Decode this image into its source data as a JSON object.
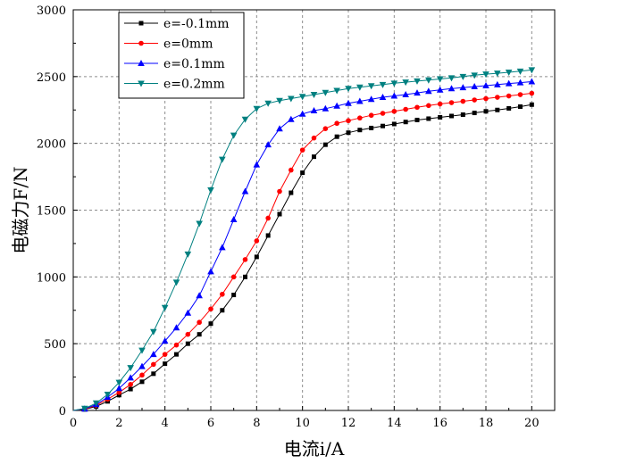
{
  "chart_data": {
    "type": "line",
    "title": "",
    "xlabel": "电流i/A",
    "ylabel": "电磁力F/N",
    "xlim": [
      0,
      21
    ],
    "ylim": [
      0,
      3000
    ],
    "xticks": [
      0,
      2,
      4,
      6,
      8,
      10,
      12,
      14,
      16,
      18,
      20
    ],
    "yticks": [
      0,
      500,
      1000,
      1500,
      2000,
      2500,
      3000
    ],
    "grid": true,
    "legend_position": "top-left",
    "x": [
      0,
      0.5,
      1,
      1.5,
      2,
      2.5,
      3,
      3.5,
      4,
      4.5,
      5,
      5.5,
      6,
      6.5,
      7,
      7.5,
      8,
      8.5,
      9,
      9.5,
      10,
      10.5,
      11,
      11.5,
      12,
      12.5,
      13,
      13.5,
      14,
      14.5,
      15,
      15.5,
      16,
      16.5,
      17,
      17.5,
      18,
      18.5,
      19,
      19.5,
      20
    ],
    "series": [
      {
        "name": "e=-0.1mm",
        "color": "#000000",
        "marker": "square",
        "values": [
          0,
          8,
          30,
          68,
          115,
          160,
          215,
          275,
          350,
          420,
          500,
          570,
          650,
          750,
          865,
          1000,
          1150,
          1310,
          1470,
          1630,
          1780,
          1900,
          1990,
          2050,
          2080,
          2100,
          2115,
          2130,
          2145,
          2160,
          2175,
          2185,
          2195,
          2205,
          2215,
          2228,
          2240,
          2250,
          2262,
          2275,
          2290
        ]
      },
      {
        "name": "e=0mm",
        "color": "#ff0000",
        "marker": "circle",
        "values": [
          0,
          10,
          38,
          85,
          135,
          195,
          265,
          345,
          420,
          490,
          570,
          660,
          760,
          870,
          1000,
          1130,
          1270,
          1440,
          1640,
          1800,
          1950,
          2040,
          2110,
          2150,
          2170,
          2190,
          2210,
          2225,
          2240,
          2255,
          2270,
          2283,
          2295,
          2305,
          2315,
          2325,
          2335,
          2345,
          2355,
          2365,
          2375
        ]
      },
      {
        "name": "e=0.1mm",
        "color": "#0000ff",
        "marker": "triangle-up",
        "values": [
          0,
          12,
          45,
          100,
          165,
          245,
          330,
          420,
          520,
          620,
          730,
          860,
          1040,
          1220,
          1430,
          1640,
          1840,
          1990,
          2110,
          2180,
          2220,
          2245,
          2260,
          2280,
          2300,
          2315,
          2330,
          2345,
          2355,
          2365,
          2378,
          2390,
          2400,
          2410,
          2418,
          2425,
          2432,
          2440,
          2448,
          2455,
          2462
        ]
      },
      {
        "name": "e=0.2mm",
        "color": "#008080",
        "marker": "triangle-down",
        "values": [
          0,
          15,
          55,
          120,
          210,
          320,
          450,
          590,
          770,
          960,
          1170,
          1400,
          1650,
          1880,
          2060,
          2180,
          2260,
          2300,
          2320,
          2335,
          2350,
          2365,
          2380,
          2395,
          2410,
          2420,
          2430,
          2440,
          2450,
          2458,
          2466,
          2474,
          2482,
          2490,
          2500,
          2510,
          2518,
          2525,
          2532,
          2540,
          2550
        ]
      }
    ]
  }
}
